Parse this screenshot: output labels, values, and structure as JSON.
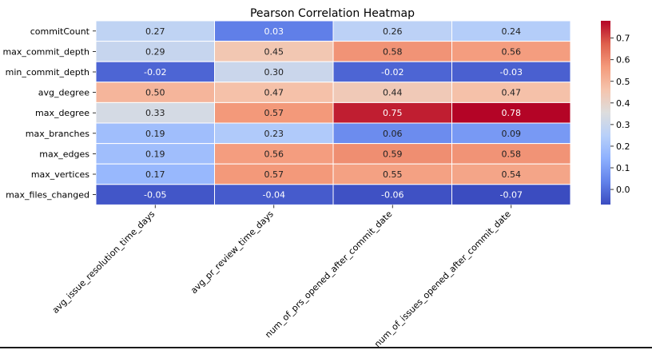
{
  "chart_data": {
    "type": "heatmap",
    "title": "Pearson Correlation Heatmap",
    "xlabel": "",
    "ylabel": "",
    "rows": [
      "commitCount",
      "max_commit_depth",
      "min_commit_depth",
      "avg_degree",
      "max_degree",
      "max_branches",
      "max_edges",
      "max_vertices",
      "max_files_changed"
    ],
    "columns": [
      "avg_issue_resolution_time_days",
      "avg_pr_review_time_days",
      "num_of_prs_opened_after_commit_date",
      "num_of_issues_opened_after_commit_date"
    ],
    "values": [
      [
        0.27,
        0.03,
        0.26,
        0.24
      ],
      [
        0.29,
        0.45,
        0.58,
        0.56
      ],
      [
        -0.02,
        0.3,
        -0.02,
        -0.03
      ],
      [
        0.5,
        0.47,
        0.44,
        0.47
      ],
      [
        0.33,
        0.57,
        0.75,
        0.78
      ],
      [
        0.19,
        0.23,
        0.06,
        0.09
      ],
      [
        0.19,
        0.56,
        0.59,
        0.58
      ],
      [
        0.17,
        0.57,
        0.55,
        0.54
      ],
      [
        -0.05,
        -0.04,
        -0.06,
        -0.07
      ]
    ],
    "colorbar": {
      "colormap": "coolwarm",
      "vmin": -0.07,
      "vmax": 0.78,
      "ticks": [
        "0.0",
        "0.1",
        "0.2",
        "0.3",
        "0.4",
        "0.5",
        "0.6",
        "0.7"
      ]
    },
    "grid": true
  }
}
